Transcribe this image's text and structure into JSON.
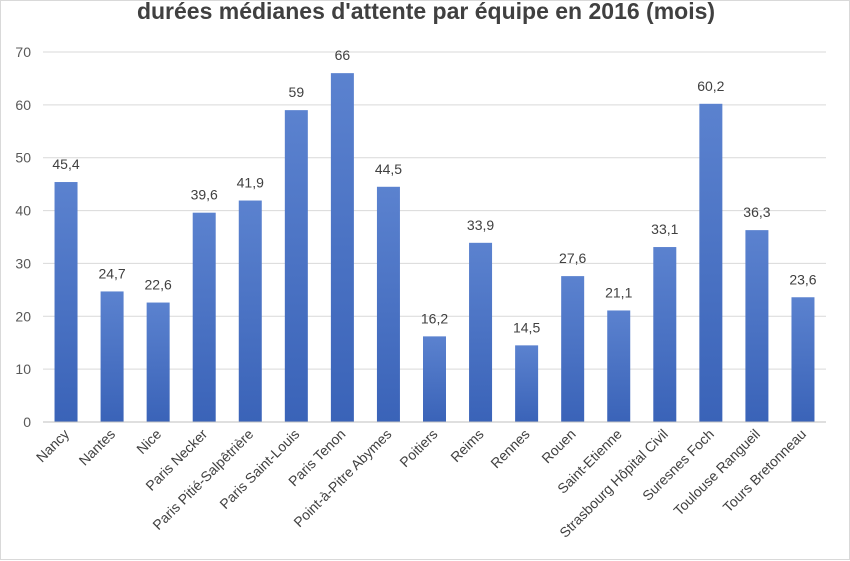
{
  "chart_data": {
    "type": "bar",
    "title": "durées médianes d'attente par équipe en 2016 (mois)",
    "xlabel": "",
    "ylabel": "",
    "ylim": [
      0,
      70
    ],
    "yticks": [
      0,
      10,
      20,
      30,
      40,
      50,
      60,
      70
    ],
    "grid": true,
    "legend": "none",
    "bar_color": "#4472c4",
    "categories": [
      "Nancy",
      "Nantes",
      "Nice",
      "Paris Necker",
      "Paris Pitié-Salpêtrière",
      "Paris Saint-Louis",
      "Paris Tenon",
      "Point-à-Pitre Abymes",
      "Poitiers",
      "Reims",
      "Rennes",
      "Rouen",
      "Saint-Etienne",
      "Strasbourg Hôpital Civil",
      "Suresnes Foch",
      "Toulouse Rangueil",
      "Tours Bretonneau"
    ],
    "values": [
      45.4,
      24.7,
      22.6,
      39.6,
      41.9,
      59,
      66,
      44.5,
      16.2,
      33.9,
      14.5,
      27.6,
      21.1,
      33.1,
      60.2,
      36.3,
      23.6
    ],
    "data_labels": [
      "45,4",
      "24,7",
      "22,6",
      "39,6",
      "41,9",
      "59",
      "66",
      "44,5",
      "16,2",
      "33,9",
      "14,5",
      "27,6",
      "21,1",
      "33,1",
      "60,2",
      "36,3",
      "23,6"
    ]
  }
}
